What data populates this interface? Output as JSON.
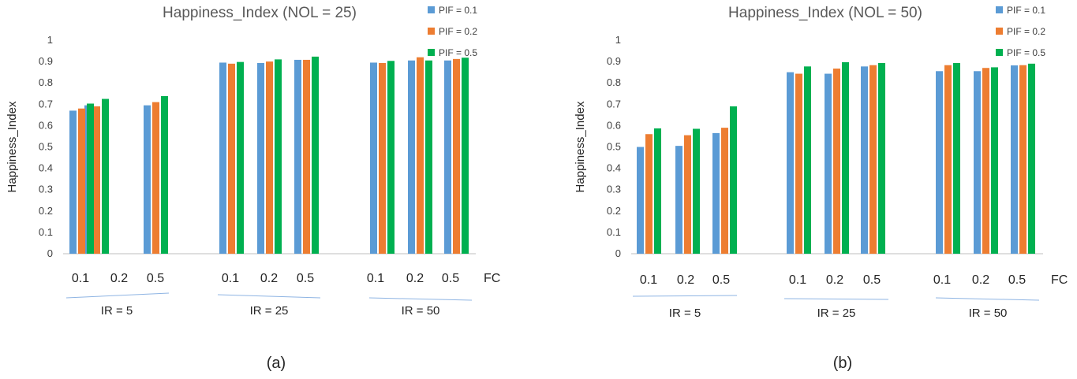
{
  "colors": {
    "pif_0_1": "#5b9bd5",
    "pif_0_2": "#ed7d31",
    "pif_0_5": "#00b050",
    "axis": "#bfbfbf",
    "underline": "#8eb4e3"
  },
  "chart_data": [
    {
      "type": "bar",
      "panel": "(a)",
      "title": "Happiness_Index (NOL = 25)",
      "ylabel": "Happiness_Index",
      "xlabel": "FC",
      "ylim": [
        0,
        1
      ],
      "yticks": [
        "0",
        "0.1",
        "0.2",
        "0.3",
        "0.4",
        "0.5",
        "0.6",
        "0.7",
        "0.8",
        "0.9",
        "1"
      ],
      "grid": false,
      "legend": "top-right",
      "group_labels": [
        "IR = 5",
        "IR = 25",
        "IR = 50"
      ],
      "categories": [
        "0.1",
        "0.2",
        "0.5",
        "0.1",
        "0.2",
        "0.5",
        "0.1",
        "0.2",
        "0.5"
      ],
      "series": [
        {
          "name": "PIF = 0.1",
          "values": [
            0.67,
            0.695,
            0.695,
            0.895,
            0.893,
            0.908,
            0.895,
            0.905,
            0.905
          ]
        },
        {
          "name": "PIF = 0.2",
          "values": [
            0.68,
            0.69,
            0.71,
            0.89,
            0.9,
            0.908,
            0.893,
            0.92,
            0.912
          ]
        },
        {
          "name": "PIF = 0.5",
          "values": [
            0.703,
            0.725,
            0.738,
            0.898,
            0.91,
            0.923,
            0.903,
            0.905,
            0.918
          ]
        }
      ]
    },
    {
      "type": "bar",
      "panel": "(b)",
      "title": "Happiness_Index (NOL = 50)",
      "ylabel": "Happiness_Index",
      "xlabel": "FC",
      "ylim": [
        0,
        1
      ],
      "yticks": [
        "0",
        "0.1",
        "0.2",
        "0.3",
        "0.4",
        "0.5",
        "0.6",
        "0.7",
        "0.8",
        "0.9",
        "1"
      ],
      "grid": false,
      "legend": "top-right",
      "group_labels": [
        "IR = 5",
        "IR = 25",
        "IR = 50"
      ],
      "categories": [
        "0.1",
        "0.2",
        "0.5",
        "0.1",
        "0.2",
        "0.5",
        "0.1",
        "0.2",
        "0.5"
      ],
      "series": [
        {
          "name": "PIF = 0.1",
          "values": [
            0.5,
            0.505,
            0.565,
            0.85,
            0.843,
            0.877,
            0.855,
            0.855,
            0.882
          ]
        },
        {
          "name": "PIF = 0.2",
          "values": [
            0.56,
            0.555,
            0.59,
            0.843,
            0.867,
            0.883,
            0.883,
            0.87,
            0.883
          ]
        },
        {
          "name": "PIF = 0.5",
          "values": [
            0.587,
            0.585,
            0.69,
            0.877,
            0.897,
            0.893,
            0.893,
            0.873,
            0.89
          ]
        }
      ]
    }
  ]
}
